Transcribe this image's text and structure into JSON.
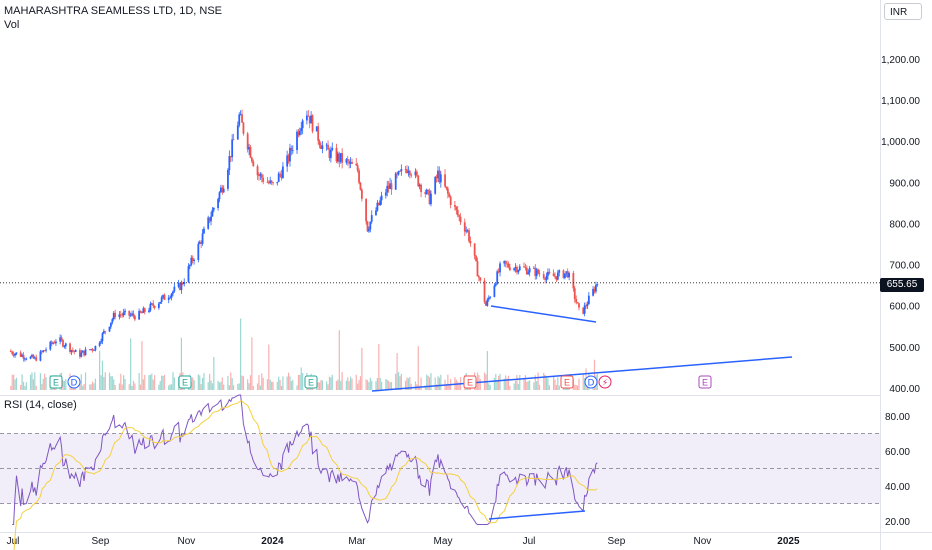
{
  "header": {
    "title": "MAHARASHTRA SEAMLESS LTD, 1D, NSE",
    "volume_label": "Vol",
    "currency": "INR"
  },
  "price_axis": {
    "ticks": [
      "1,200.00",
      "1,100.00",
      "1,000.00",
      "900.00",
      "800.00",
      "700.00",
      "600.00",
      "500.00",
      "400.00"
    ],
    "last_price": "655.65"
  },
  "rsi": {
    "label": "RSI (14, close)",
    "ticks": [
      "80.00",
      "60.00",
      "40.00",
      "20.00"
    ]
  },
  "time_axis": {
    "labels": [
      "Jul",
      "Sep",
      "Nov",
      "2024",
      "Mar",
      "May",
      "Jul",
      "Sep",
      "Nov",
      "2025"
    ]
  },
  "event_markers": [
    {
      "letter": "E",
      "type": "earnings"
    },
    {
      "letter": "D",
      "type": "dividend"
    },
    {
      "letter": "E",
      "type": "earnings"
    },
    {
      "letter": "E",
      "type": "earnings"
    },
    {
      "letter": "E",
      "type": "earnings"
    },
    {
      "letter": "E",
      "type": "earnings"
    },
    {
      "letter": "D",
      "type": "dividend"
    },
    {
      "letter": "⚡",
      "type": "split"
    },
    {
      "letter": "E",
      "type": "earnings"
    }
  ],
  "chart_data": {
    "type": "candlestick",
    "symbol": "MAHARASHTRA SEAMLESS LTD",
    "interval": "1D",
    "exchange": "NSE",
    "currency": "INR",
    "last_price": 655.65,
    "y_range": [
      395,
      1245
    ],
    "price_path": [
      [
        "2023-07-01",
        490
      ],
      [
        "2023-07-20",
        470
      ],
      [
        "2023-08-05",
        520
      ],
      [
        "2023-08-20",
        480
      ],
      [
        "2023-09-01",
        500
      ],
      [
        "2023-09-15",
        580
      ],
      [
        "2023-10-01",
        575
      ],
      [
        "2023-10-20",
        620
      ],
      [
        "2023-11-01",
        650
      ],
      [
        "2023-11-15",
        760
      ],
      [
        "2023-12-01",
        900
      ],
      [
        "2023-12-12",
        1060
      ],
      [
        "2023-12-25",
        920
      ],
      [
        "2024-01-05",
        890
      ],
      [
        "2024-01-15",
        950
      ],
      [
        "2024-01-28",
        1080
      ],
      [
        "2024-02-10",
        980
      ],
      [
        "2024-02-25",
        950
      ],
      [
        "2024-03-05",
        930
      ],
      [
        "2024-03-12",
        790
      ],
      [
        "2024-03-25",
        880
      ],
      [
        "2024-04-10",
        940
      ],
      [
        "2024-04-25",
        860
      ],
      [
        "2024-05-01",
        920
      ],
      [
        "2024-05-15",
        820
      ],
      [
        "2024-05-22",
        780
      ],
      [
        "2024-06-04",
        600
      ],
      [
        "2024-06-15",
        700
      ],
      [
        "2024-07-01",
        690
      ],
      [
        "2024-07-20",
        670
      ],
      [
        "2024-08-01",
        680
      ],
      [
        "2024-08-10",
        575
      ],
      [
        "2024-08-22",
        655.65
      ]
    ],
    "rsi": {
      "period": 14,
      "source": "close",
      "upper_band": 70,
      "middle_band": 50,
      "lower_band": 30,
      "y_range": [
        18,
        92
      ],
      "last_value": 59
    }
  }
}
